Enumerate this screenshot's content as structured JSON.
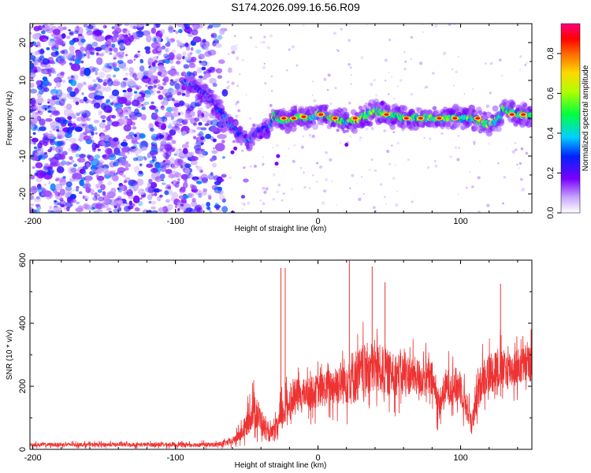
{
  "title": "S174.2026.099.16.56.R09",
  "chart_data": [
    {
      "type": "heatmap",
      "xlabel": "Height of straight line (km)",
      "ylabel": "Frequency (Hz)",
      "xlim": [
        -202,
        150
      ],
      "ylim": [
        -25,
        25
      ],
      "xticks": [
        -200,
        -100,
        0,
        100
      ],
      "yticks": [
        -20,
        -10,
        0,
        10,
        20
      ],
      "noise_region": {
        "x_start": -202,
        "x_end": -65,
        "y_start": -25,
        "y_end": 25
      },
      "ridge": {
        "x": [
          -95,
          -85,
          -75,
          -65,
          -55,
          -48,
          -42,
          -35,
          -30,
          -25,
          -15,
          -5,
          0,
          10,
          20,
          30,
          40,
          50,
          60,
          70,
          80,
          90,
          100,
          110,
          120,
          127,
          130,
          140,
          150
        ],
        "y": [
          10,
          8,
          5,
          0,
          -4,
          -6,
          -3,
          -3,
          1,
          -1,
          0,
          0,
          1,
          0,
          -1,
          0,
          2,
          1,
          0,
          0,
          0,
          0,
          0,
          0,
          -2,
          0,
          3,
          1,
          1
        ]
      },
      "colorbar": {
        "label": "Normalized spectral amplitude",
        "range": [
          0.0,
          0.95
        ],
        "ticks": [
          "0.0",
          "0.2",
          "0.4",
          "0.6",
          "0.8"
        ],
        "tick_values": [
          0.0,
          0.2,
          0.4,
          0.6,
          0.8
        ]
      }
    },
    {
      "type": "line",
      "xlabel": "Height of straight line (km)",
      "ylabel": "SNR (10 * v/v)",
      "xlim": [
        -202,
        150
      ],
      "ylim": [
        0,
        600
      ],
      "xticks": [
        -200,
        -100,
        0,
        100
      ],
      "yticks": [
        0,
        200,
        400,
        600
      ],
      "color": "#ee3333",
      "envelope": {
        "x": [
          -202,
          -70,
          -60,
          -52,
          -45,
          -40,
          -35,
          -30,
          -25,
          -20,
          -15,
          -10,
          0,
          10,
          20,
          25,
          30,
          35,
          40,
          45,
          50,
          60,
          70,
          80,
          85,
          90,
          100,
          108,
          115,
          120,
          125,
          130,
          140,
          150
        ],
        "baseline": [
          15,
          15,
          25,
          60,
          130,
          90,
          45,
          55,
          110,
          150,
          170,
          175,
          185,
          200,
          220,
          230,
          240,
          255,
          260,
          250,
          240,
          240,
          230,
          220,
          140,
          200,
          200,
          80,
          230,
          240,
          260,
          250,
          260,
          275
        ],
        "spread": [
          10,
          12,
          20,
          50,
          100,
          80,
          35,
          50,
          90,
          80,
          90,
          80,
          90,
          100,
          130,
          150,
          140,
          140,
          140,
          130,
          120,
          110,
          100,
          100,
          80,
          100,
          100,
          60,
          110,
          110,
          120,
          110,
          100,
          100
        ]
      },
      "peaks": [
        {
          "x": -23,
          "y": 575
        },
        {
          "x": -26,
          "y": 575
        },
        {
          "x": 22,
          "y": 600
        },
        {
          "x": 38,
          "y": 580
        },
        {
          "x": 47,
          "y": 530
        },
        {
          "x": 128,
          "y": 525
        }
      ]
    }
  ]
}
